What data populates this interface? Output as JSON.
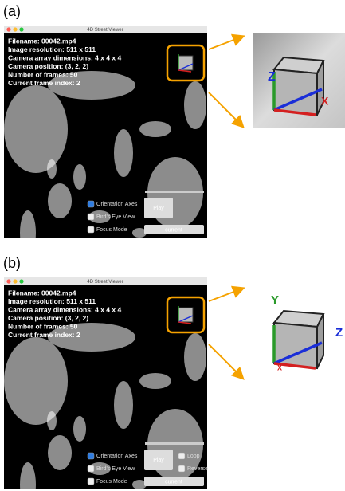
{
  "panels": [
    {
      "label": "(a)",
      "window_title": "4D Street Viewer",
      "info": [
        "Filename: 00042.mp4",
        "Image resolution: 511 x 511",
        "Camera array dimensions: 4 x 4 x 4",
        "Camera position: (3, 2, 2)",
        "Number of frames: 50",
        "Current frame index: 2"
      ],
      "checkboxes": [
        "Orientation Axes",
        "Bird's Eye View",
        "Focus Mode"
      ],
      "buttons": [
        "Play",
        "current"
      ],
      "zoom_axes": [
        "Z",
        "X"
      ]
    },
    {
      "label": "(b)",
      "window_title": "4D Street Viewer",
      "info": [
        "Filename: 00042.mp4",
        "Image resolution: 511 x 511",
        "Camera array dimensions: 4 x 4 x 4",
        "Camera position: (3, 2, 2)",
        "Number of frames: 50",
        "Current frame index: 2"
      ],
      "checkboxes": [
        "Orientation Axes",
        "Bird's Eye View",
        "Focus Mode",
        "Loop",
        "Reverse"
      ],
      "buttons": [
        "Play",
        "current"
      ],
      "zoom_axes": [
        "Y",
        "Z",
        "X"
      ]
    }
  ]
}
